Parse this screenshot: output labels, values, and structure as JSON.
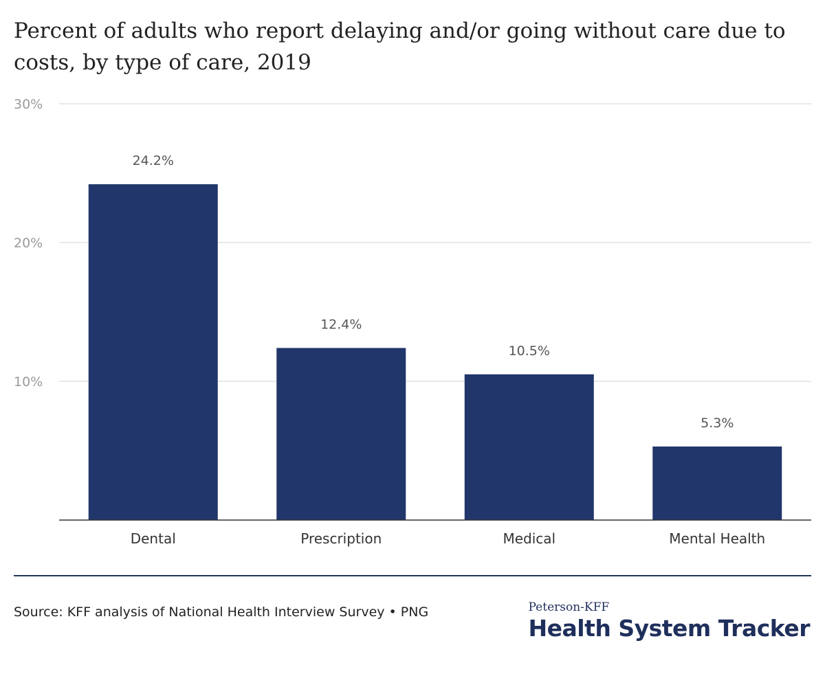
{
  "title": "Percent of adults who report delaying and/or going without care due to costs, by type of care, 2019",
  "chart_data": {
    "type": "bar",
    "categories": [
      "Dental",
      "Prescription",
      "Medical",
      "Mental Health"
    ],
    "values": [
      24.2,
      12.4,
      10.5,
      5.3
    ],
    "value_labels": [
      "24.2%",
      "12.4%",
      "10.5%",
      "5.3%"
    ],
    "yticks": [
      10,
      20,
      30
    ],
    "ytick_labels": [
      "10%",
      "20%",
      "30%"
    ],
    "ylim": [
      0,
      30
    ],
    "grid": true,
    "bar_color": "#21366a"
  },
  "footer": {
    "source": "Source: KFF analysis of National Health Interview Survey • PNG",
    "brand_top": "Peterson-KFF",
    "brand_main": "Health System Tracker"
  }
}
